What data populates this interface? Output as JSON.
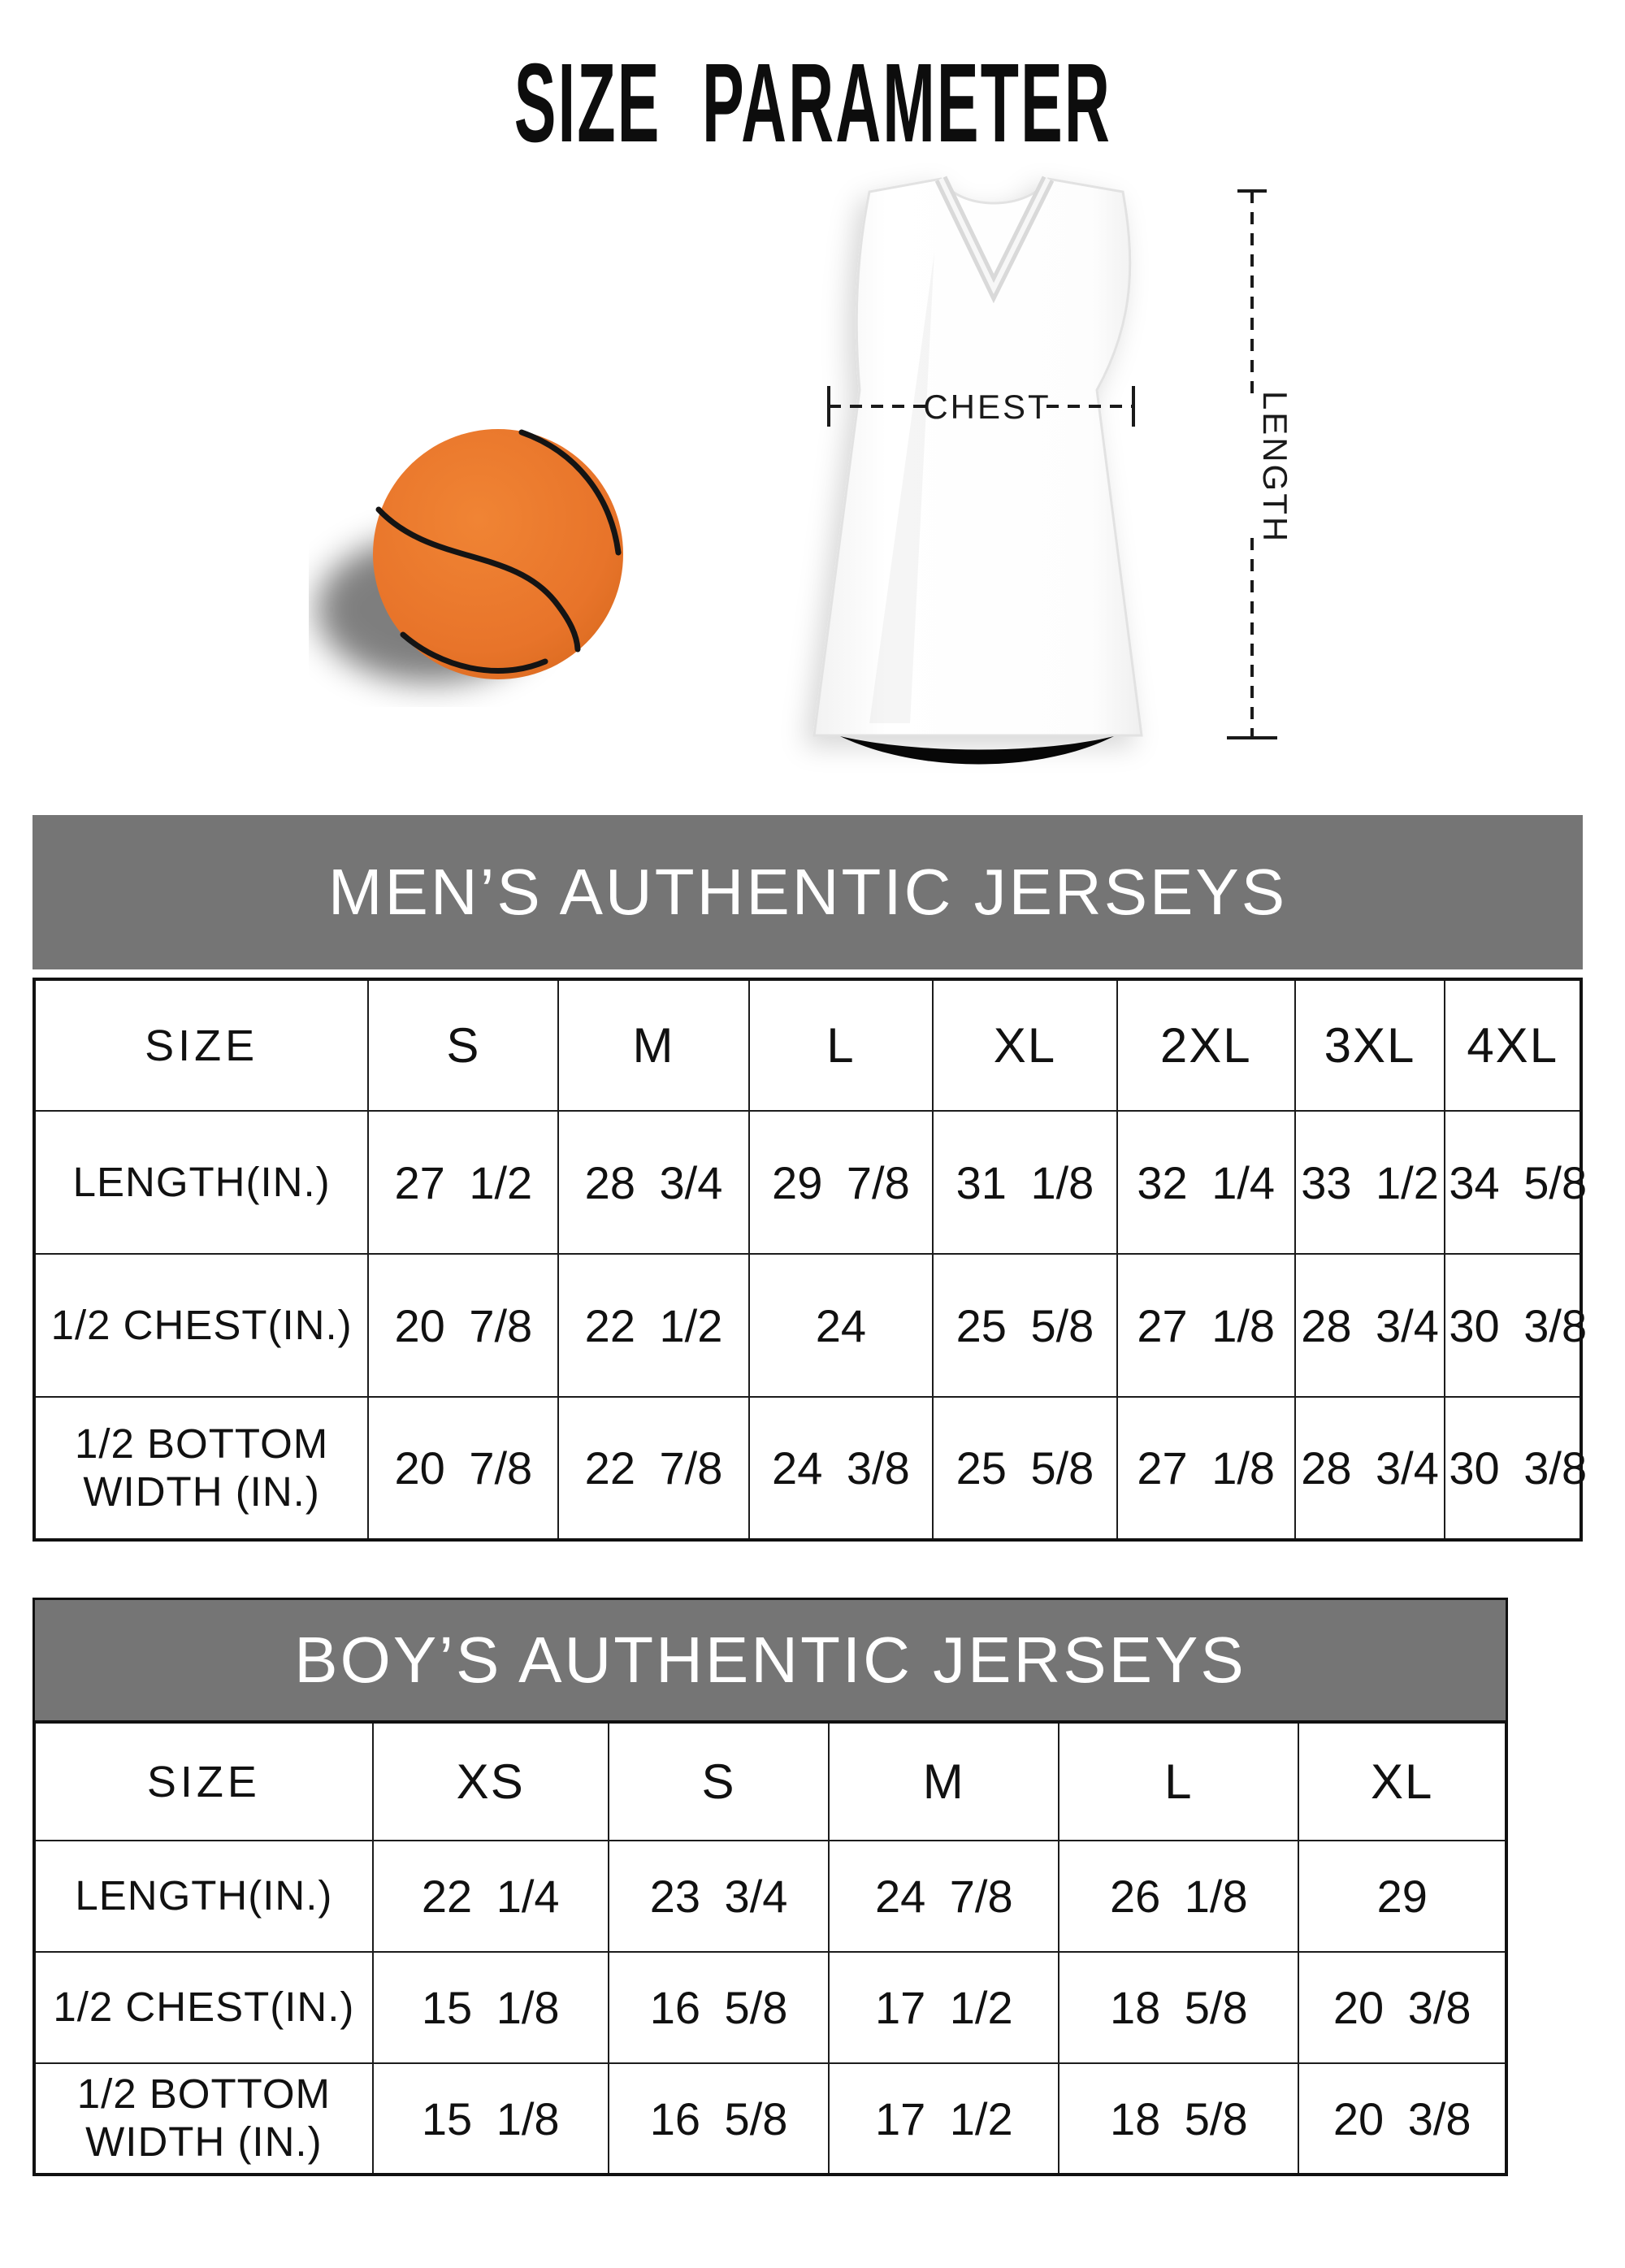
{
  "title": "SIZE PARAMETER",
  "diagram": {
    "chest_label": "CHEST",
    "length_label": "LENGTH",
    "basketball_color": "#e8742a",
    "banner_color": "#757575"
  },
  "tables": [
    {
      "id": "mens",
      "header": "MEN’S AUTHENTIC JERSEYS",
      "size_label": "SIZE",
      "columns": [
        "S",
        "M",
        "L",
        "XL",
        "2XL",
        "3XL",
        "4XL"
      ],
      "rows": [
        {
          "label": "LENGTH(IN.)",
          "values": [
            "27 1/2",
            "28 3/4",
            "29 7/8",
            "31 1/8",
            "32 1/4",
            "33 1/2",
            "34 5/8"
          ]
        },
        {
          "label": "1/2 CHEST(IN.)",
          "values": [
            "20 7/8",
            "22 1/2",
            "24",
            "25 5/8",
            "27 1/8",
            "28 3/4",
            "30 3/8"
          ]
        },
        {
          "label": "1/2 BOTTOM WIDTH (IN.)",
          "values": [
            "20 7/8",
            "22 7/8",
            "24 3/8",
            "25 5/8",
            "27 1/8",
            "28 3/4",
            "30 3/8"
          ]
        }
      ]
    },
    {
      "id": "boys",
      "header": "BOY’S AUTHENTIC JERSEYS",
      "size_label": "SIZE",
      "columns": [
        "XS",
        "S",
        "M",
        "L",
        "XL"
      ],
      "rows": [
        {
          "label": "LENGTH(IN.)",
          "values": [
            "22 1/4",
            "23 3/4",
            "24 7/8",
            "26 1/8",
            "29"
          ]
        },
        {
          "label": "1/2 CHEST(IN.)",
          "values": [
            "15 1/8",
            "16 5/8",
            "17 1/2",
            "18 5/8",
            "20 3/8"
          ]
        },
        {
          "label": "1/2 BOTTOM WIDTH (IN.)",
          "values": [
            "15 1/8",
            "16 5/8",
            "17 1/2",
            "18 5/8",
            "20 3/8"
          ]
        }
      ]
    }
  ]
}
